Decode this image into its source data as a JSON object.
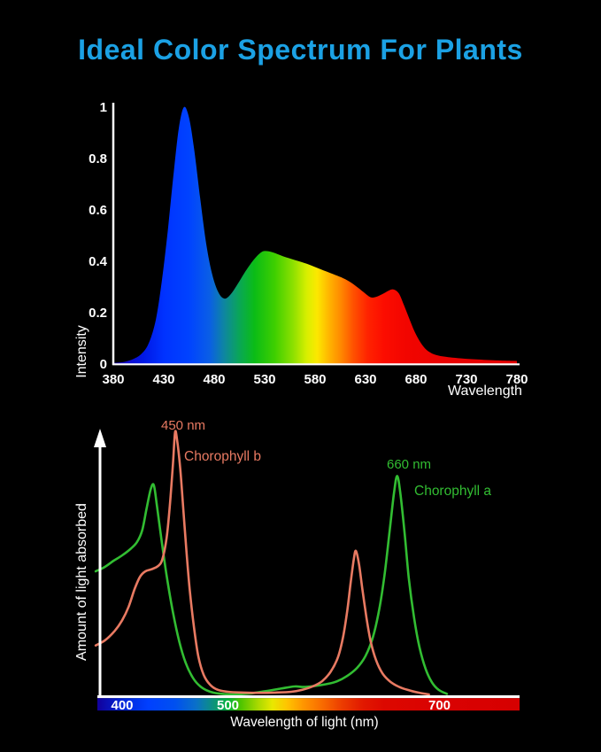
{
  "title": {
    "text": "Ideal Color Spectrum For Plants",
    "color": "#1ba1e4"
  },
  "page": {
    "background": "#000000",
    "axis_color": "#ffffff"
  },
  "chart_data": [
    {
      "type": "area",
      "name": "led-light-spectrum",
      "xlabel": "Wavelength",
      "ylabel": "Intensity",
      "xlim": [
        380,
        780
      ],
      "ylim": [
        0,
        1
      ],
      "xticks": [
        380,
        430,
        480,
        530,
        580,
        630,
        680,
        730,
        780
      ],
      "yticks": [
        0,
        0.2,
        0.4,
        0.6,
        0.8,
        1
      ],
      "grid": false,
      "legend": "none",
      "fill": "visible-spectrum-gradient",
      "gradient_stops": [
        [
          0.0,
          "#1e00b4"
        ],
        [
          0.075,
          "#0018e6"
        ],
        [
          0.125,
          "#0032ff"
        ],
        [
          0.188,
          "#0043ff"
        ],
        [
          0.238,
          "#0a5ee6"
        ],
        [
          0.275,
          "#0e86a0"
        ],
        [
          0.313,
          "#0aa755"
        ],
        [
          0.35,
          "#0bbc16"
        ],
        [
          0.4,
          "#3ecf00"
        ],
        [
          0.445,
          "#8ce000"
        ],
        [
          0.48,
          "#d9ef00"
        ],
        [
          0.505,
          "#fce800"
        ],
        [
          0.535,
          "#ffb400"
        ],
        [
          0.563,
          "#ff8a00"
        ],
        [
          0.595,
          "#ff5100"
        ],
        [
          0.63,
          "#ff2300"
        ],
        [
          0.67,
          "#fc0d00"
        ],
        [
          0.725,
          "#f20500"
        ],
        [
          0.825,
          "#ea0202"
        ],
        [
          1.0,
          "#e40000"
        ]
      ],
      "series": [
        {
          "name": "intensity",
          "points": [
            [
              380,
              0.005
            ],
            [
              390,
              0.008
            ],
            [
              400,
              0.02
            ],
            [
              408,
              0.04
            ],
            [
              415,
              0.08
            ],
            [
              422,
              0.17
            ],
            [
              428,
              0.32
            ],
            [
              434,
              0.52
            ],
            [
              440,
              0.75
            ],
            [
              445,
              0.92
            ],
            [
              450,
              1.0
            ],
            [
              455,
              0.96
            ],
            [
              460,
              0.84
            ],
            [
              466,
              0.65
            ],
            [
              472,
              0.47
            ],
            [
              478,
              0.35
            ],
            [
              484,
              0.28
            ],
            [
              490,
              0.255
            ],
            [
              496,
              0.27
            ],
            [
              503,
              0.31
            ],
            [
              510,
              0.355
            ],
            [
              518,
              0.4
            ],
            [
              525,
              0.43
            ],
            [
              530,
              0.44
            ],
            [
              538,
              0.435
            ],
            [
              548,
              0.42
            ],
            [
              560,
              0.405
            ],
            [
              572,
              0.39
            ],
            [
              585,
              0.37
            ],
            [
              598,
              0.35
            ],
            [
              610,
              0.33
            ],
            [
              620,
              0.305
            ],
            [
              628,
              0.28
            ],
            [
              635,
              0.26
            ],
            [
              641,
              0.262
            ],
            [
              648,
              0.275
            ],
            [
              654,
              0.288
            ],
            [
              658,
              0.29
            ],
            [
              663,
              0.275
            ],
            [
              668,
              0.23
            ],
            [
              674,
              0.17
            ],
            [
              680,
              0.115
            ],
            [
              687,
              0.07
            ],
            [
              694,
              0.045
            ],
            [
              702,
              0.033
            ],
            [
              712,
              0.027
            ],
            [
              725,
              0.022
            ],
            [
              740,
              0.018
            ],
            [
              760,
              0.014
            ],
            [
              780,
              0.012
            ]
          ]
        }
      ]
    },
    {
      "type": "line",
      "name": "chlorophyll-absorption",
      "xlabel": "Wavelength of light (nm)",
      "ylabel": "Amount of light absorbed",
      "xlim": [
        375,
        776
      ],
      "colorbar_ticks": [
        400,
        500,
        700
      ],
      "grid": false,
      "colorbar_stops": [
        [
          0.0,
          "#12009b"
        ],
        [
          0.059,
          "#0026d8"
        ],
        [
          0.121,
          "#0040ff"
        ],
        [
          0.184,
          "#0050f0"
        ],
        [
          0.234,
          "#0a70c8"
        ],
        [
          0.277,
          "#0d9478"
        ],
        [
          0.309,
          "#00b23c"
        ],
        [
          0.339,
          "#4cc400"
        ],
        [
          0.379,
          "#a6d800"
        ],
        [
          0.414,
          "#e8e800"
        ],
        [
          0.449,
          "#ffc400"
        ],
        [
          0.489,
          "#ff9400"
        ],
        [
          0.534,
          "#f86a00"
        ],
        [
          0.579,
          "#ec3c00"
        ],
        [
          0.63,
          "#e11800"
        ],
        [
          0.68,
          "#dc0800"
        ],
        [
          0.81,
          "#da0202"
        ],
        [
          1.0,
          "#d60000"
        ]
      ],
      "annotations": [
        {
          "text": "450 nm",
          "color": "#e87a62"
        },
        {
          "text": "Chorophyll b",
          "color": "#e87a62"
        },
        {
          "text": "660 nm",
          "color": "#32bd32"
        },
        {
          "text": "Chorophyll a",
          "color": "#32bd32"
        }
      ],
      "series": [
        {
          "name": "Chorophyll a",
          "color": "#32bd32",
          "peaks_nm": [
            430,
            660
          ],
          "points": [
            [
              375,
              0.475
            ],
            [
              383,
              0.49
            ],
            [
              392,
              0.515
            ],
            [
              400,
              0.535
            ],
            [
              408,
              0.56
            ],
            [
              414,
              0.585
            ],
            [
              419,
              0.63
            ],
            [
              423,
              0.71
            ],
            [
              427,
              0.785
            ],
            [
              430,
              0.8
            ],
            [
              433,
              0.72
            ],
            [
              437,
              0.6
            ],
            [
              442,
              0.46
            ],
            [
              448,
              0.32
            ],
            [
              454,
              0.21
            ],
            [
              460,
              0.13
            ],
            [
              467,
              0.072
            ],
            [
              474,
              0.04
            ],
            [
              482,
              0.022
            ],
            [
              492,
              0.013
            ],
            [
              505,
              0.01
            ],
            [
              520,
              0.013
            ],
            [
              535,
              0.022
            ],
            [
              550,
              0.032
            ],
            [
              563,
              0.04
            ],
            [
              572,
              0.038
            ],
            [
              582,
              0.042
            ],
            [
              592,
              0.048
            ],
            [
              602,
              0.058
            ],
            [
              612,
              0.078
            ],
            [
              622,
              0.11
            ],
            [
              630,
              0.155
            ],
            [
              637,
              0.225
            ],
            [
              643,
              0.33
            ],
            [
              648,
              0.46
            ],
            [
              653,
              0.63
            ],
            [
              657,
              0.77
            ],
            [
              660,
              0.835
            ],
            [
              663,
              0.77
            ],
            [
              667,
              0.62
            ],
            [
              671,
              0.45
            ],
            [
              676,
              0.3
            ],
            [
              681,
              0.19
            ],
            [
              687,
              0.105
            ],
            [
              693,
              0.055
            ],
            [
              699,
              0.028
            ],
            [
              707,
              0.012
            ]
          ]
        },
        {
          "name": "Chorophyll b",
          "color": "#e87a62",
          "peaks_nm": [
            450,
            621
          ],
          "points": [
            [
              375,
              0.195
            ],
            [
              384,
              0.215
            ],
            [
              393,
              0.25
            ],
            [
              400,
              0.29
            ],
            [
              406,
              0.34
            ],
            [
              412,
              0.41
            ],
            [
              417,
              0.455
            ],
            [
              422,
              0.475
            ],
            [
              428,
              0.483
            ],
            [
              434,
              0.495
            ],
            [
              438,
              0.52
            ],
            [
              442,
              0.6
            ],
            [
              445,
              0.72
            ],
            [
              448,
              0.88
            ],
            [
              450,
              1.0
            ],
            [
              452,
              0.97
            ],
            [
              455,
              0.86
            ],
            [
              458,
              0.7
            ],
            [
              461,
              0.54
            ],
            [
              464,
              0.4
            ],
            [
              468,
              0.26
            ],
            [
              472,
              0.155
            ],
            [
              477,
              0.085
            ],
            [
              483,
              0.047
            ],
            [
              490,
              0.028
            ],
            [
              500,
              0.02
            ],
            [
              515,
              0.017
            ],
            [
              530,
              0.016
            ],
            [
              545,
              0.017
            ],
            [
              560,
              0.02
            ],
            [
              570,
              0.027
            ],
            [
              580,
              0.04
            ],
            [
              589,
              0.06
            ],
            [
              597,
              0.095
            ],
            [
              604,
              0.15
            ],
            [
              609,
              0.23
            ],
            [
              613,
              0.33
            ],
            [
              616,
              0.43
            ],
            [
              619,
              0.52
            ],
            [
              621,
              0.552
            ],
            [
              624,
              0.5
            ],
            [
              627,
              0.41
            ],
            [
              631,
              0.3
            ],
            [
              635,
              0.21
            ],
            [
              640,
              0.14
            ],
            [
              646,
              0.09
            ],
            [
              653,
              0.06
            ],
            [
              661,
              0.04
            ],
            [
              670,
              0.027
            ],
            [
              680,
              0.017
            ],
            [
              690,
              0.01
            ]
          ]
        }
      ]
    }
  ]
}
